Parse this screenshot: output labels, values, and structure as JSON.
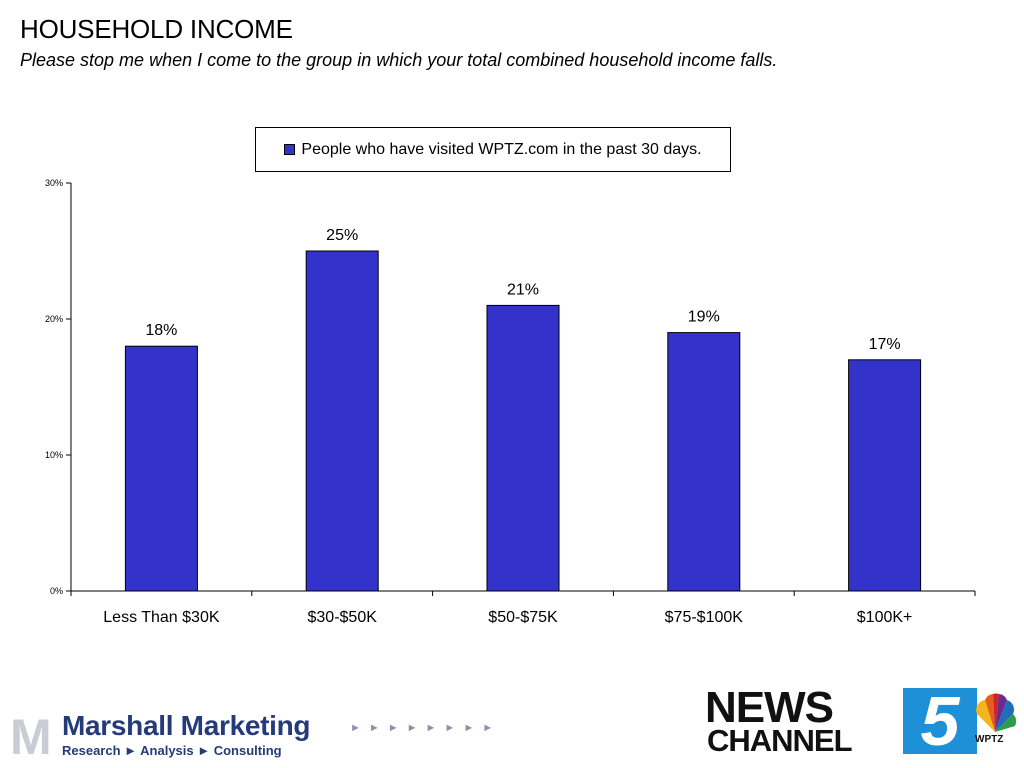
{
  "header": {
    "title": "HOUSEHOLD INCOME",
    "subtitle": "Please stop me when I come to the group in which your total combined household income falls."
  },
  "chart_data": {
    "type": "bar",
    "categories": [
      "Less Than $30K",
      "$30-$50K",
      "$50-$75K",
      "$75-$100K",
      "$100K+"
    ],
    "series": [
      {
        "name": "People who have visited WPTZ.com in the past 30 days.",
        "values": [
          18,
          25,
          21,
          19,
          17
        ],
        "color": "#3333cc"
      }
    ],
    "data_labels": [
      "18%",
      "25%",
      "21%",
      "19%",
      "17%"
    ],
    "ylim": [
      0,
      30
    ],
    "yticks": [
      {
        "value": 0,
        "label": "0%"
      },
      {
        "value": 10,
        "label": "10%"
      },
      {
        "value": 20,
        "label": "20%"
      },
      {
        "value": 30,
        "label": "30%"
      }
    ],
    "xlabel": "",
    "ylabel": "",
    "grid": false,
    "legend_position": "top-center"
  },
  "footer": {
    "marshall_logo_mark": "M",
    "marshall_name": "Marshall Marketing",
    "marshall_tagline": "Research ► Analysis ► Consulting",
    "marshall_arrows": "►►►►►►►►",
    "news_top": "NEWS",
    "news_bottom": "CHANNEL",
    "channel_number": "5",
    "station": "WPTZ"
  }
}
